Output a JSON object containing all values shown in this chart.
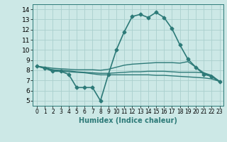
{
  "title": "",
  "xlabel": "Humidex (Indice chaleur)",
  "xlim": [
    -0.5,
    23.5
  ],
  "ylim": [
    4.5,
    14.5
  ],
  "yticks": [
    5,
    6,
    7,
    8,
    9,
    10,
    11,
    12,
    13,
    14
  ],
  "xticks": [
    0,
    1,
    2,
    3,
    4,
    5,
    6,
    7,
    8,
    9,
    10,
    11,
    12,
    13,
    14,
    15,
    16,
    17,
    18,
    19,
    20,
    21,
    22,
    23
  ],
  "background_color": "#cce8e6",
  "grid_color": "#aacfcd",
  "line_color": "#2d7a78",
  "series": [
    {
      "x": [
        0,
        1,
        2,
        3,
        4,
        5,
        6,
        7,
        8,
        9,
        10,
        11,
        12,
        13,
        14,
        15,
        16,
        17,
        18,
        19,
        20,
        21,
        22,
        23
      ],
      "y": [
        8.4,
        8.2,
        7.9,
        7.9,
        7.6,
        6.3,
        6.3,
        6.3,
        5.0,
        7.6,
        10.0,
        11.8,
        13.3,
        13.5,
        13.2,
        13.7,
        13.2,
        12.1,
        10.5,
        9.1,
        8.3,
        7.6,
        7.4,
        6.9
      ],
      "marker": "D",
      "markersize": 2.5,
      "linewidth": 1.2
    },
    {
      "x": [
        0,
        1,
        2,
        3,
        4,
        5,
        6,
        7,
        8,
        9,
        10,
        11,
        12,
        13,
        14,
        15,
        16,
        17,
        18,
        19,
        20,
        21,
        22,
        23
      ],
      "y": [
        8.4,
        8.3,
        8.2,
        8.15,
        8.1,
        8.05,
        8.05,
        8.05,
        8.0,
        8.1,
        8.3,
        8.5,
        8.6,
        8.65,
        8.7,
        8.75,
        8.75,
        8.75,
        8.7,
        8.85,
        8.3,
        7.75,
        7.5,
        6.9
      ],
      "marker": null,
      "linewidth": 1.0
    },
    {
      "x": [
        0,
        1,
        2,
        3,
        4,
        5,
        6,
        7,
        8,
        9,
        10,
        11,
        12,
        13,
        14,
        15,
        16,
        17,
        18,
        19,
        20,
        21,
        22,
        23
      ],
      "y": [
        8.4,
        8.25,
        8.05,
        8.0,
        7.95,
        7.85,
        7.8,
        7.75,
        7.7,
        7.7,
        7.75,
        7.8,
        7.85,
        7.85,
        7.9,
        7.9,
        7.9,
        7.85,
        7.8,
        7.8,
        7.8,
        7.75,
        7.35,
        6.9
      ],
      "marker": null,
      "linewidth": 1.0
    },
    {
      "x": [
        0,
        1,
        2,
        3,
        4,
        5,
        6,
        7,
        8,
        9,
        10,
        11,
        12,
        13,
        14,
        15,
        16,
        17,
        18,
        19,
        20,
        21,
        22,
        23
      ],
      "y": [
        8.4,
        8.2,
        8.0,
        7.9,
        7.85,
        7.8,
        7.75,
        7.65,
        7.55,
        7.55,
        7.55,
        7.55,
        7.55,
        7.55,
        7.55,
        7.5,
        7.5,
        7.45,
        7.4,
        7.35,
        7.3,
        7.25,
        7.15,
        6.9
      ],
      "marker": null,
      "linewidth": 1.0
    }
  ]
}
